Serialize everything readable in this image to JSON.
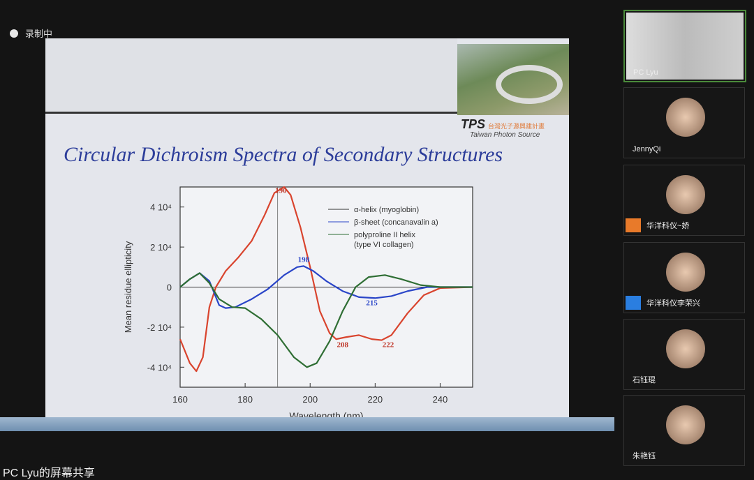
{
  "app": {
    "recording_label": "录制中",
    "share_label": "PC Lyu的屏幕共享"
  },
  "slide": {
    "title": "Circular Dichroism Spectra of Secondary Structures",
    "logo_text": "TPS",
    "logo_cn": "台灣光子源興建計畫",
    "logo_en": "Taiwan Photon Source"
  },
  "participants": [
    {
      "name": "PC Lyu",
      "video": true,
      "active": true
    },
    {
      "name": "JennyQi"
    },
    {
      "name": "华洋科仪~娇",
      "badge_color": "#e87a2a"
    },
    {
      "name": "华洋科仪李荣兴",
      "badge_color": "#2a7ee0"
    },
    {
      "name": "石钰琨"
    },
    {
      "name": "朱艳钰"
    }
  ],
  "chart_data": {
    "type": "line",
    "xlabel": "Wavelength (nm)",
    "ylabel": "Mean residue ellipticity",
    "xlim": [
      160,
      250
    ],
    "ylim": [
      -50000,
      50000
    ],
    "xticks": [
      "160",
      "180",
      "200",
      "220",
      "240"
    ],
    "xtick_values": [
      160,
      180,
      200,
      220,
      240
    ],
    "yticks": [
      "4 10⁴",
      "2 10⁴",
      "0",
      "-2 10⁴",
      "-4 10⁴"
    ],
    "ytick_values": [
      40000,
      20000,
      0,
      -20000,
      -40000
    ],
    "legend_placement": "top-right",
    "vline": 190,
    "series": [
      {
        "name": "α-helix (myoglobin)",
        "color": "#d9442e",
        "points": [
          [
            160,
            -26000
          ],
          [
            163,
            -38000
          ],
          [
            165,
            -42000
          ],
          [
            167,
            -35000
          ],
          [
            169,
            -10000
          ],
          [
            171,
            0
          ],
          [
            174,
            8000
          ],
          [
            178,
            15000
          ],
          [
            182,
            23000
          ],
          [
            186,
            36000
          ],
          [
            189,
            47000
          ],
          [
            192,
            50000
          ],
          [
            194,
            46000
          ],
          [
            197,
            30000
          ],
          [
            200,
            10000
          ],
          [
            203,
            -12000
          ],
          [
            206,
            -23000
          ],
          [
            208,
            -26000
          ],
          [
            211,
            -25000
          ],
          [
            215,
            -24000
          ],
          [
            219,
            -26000
          ],
          [
            222,
            -26500
          ],
          [
            225,
            -24000
          ],
          [
            230,
            -13000
          ],
          [
            235,
            -4000
          ],
          [
            240,
            -500
          ],
          [
            250,
            0
          ]
        ]
      },
      {
        "name": "β-sheet (concanavalin a)",
        "color": "#2a45c8",
        "points": [
          [
            160,
            0
          ],
          [
            163,
            4000
          ],
          [
            166,
            7000
          ],
          [
            169,
            3000
          ],
          [
            172,
            -9000
          ],
          [
            174,
            -10500
          ],
          [
            177,
            -10000
          ],
          [
            182,
            -6000
          ],
          [
            187,
            -1000
          ],
          [
            192,
            6000
          ],
          [
            196,
            10000
          ],
          [
            198,
            10500
          ],
          [
            201,
            8000
          ],
          [
            205,
            3000
          ],
          [
            210,
            -2000
          ],
          [
            215,
            -5000
          ],
          [
            220,
            -5500
          ],
          [
            225,
            -4500
          ],
          [
            230,
            -2000
          ],
          [
            236,
            0
          ],
          [
            250,
            0
          ]
        ]
      },
      {
        "name": "polyproline II helix (type VI collagen)",
        "color": "#2f6e34",
        "points": [
          [
            160,
            0
          ],
          [
            163,
            4000
          ],
          [
            166,
            7000
          ],
          [
            169,
            2000
          ],
          [
            172,
            -6000
          ],
          [
            176,
            -10000
          ],
          [
            180,
            -10500
          ],
          [
            185,
            -16000
          ],
          [
            190,
            -24000
          ],
          [
            195,
            -35000
          ],
          [
            199,
            -40000
          ],
          [
            202,
            -38000
          ],
          [
            206,
            -27000
          ],
          [
            210,
            -12000
          ],
          [
            214,
            0
          ],
          [
            218,
            5000
          ],
          [
            223,
            6000
          ],
          [
            228,
            4000
          ],
          [
            234,
            1000
          ],
          [
            240,
            0
          ],
          [
            250,
            0
          ]
        ]
      }
    ],
    "annotations": [
      {
        "text": "190",
        "x": 191,
        "y": 47000,
        "color": "#c0392b"
      },
      {
        "text": "198",
        "x": 198,
        "y": 12500,
        "color": "#2a45c8"
      },
      {
        "text": "215",
        "x": 219,
        "y": -9000,
        "color": "#2a45c8"
      },
      {
        "text": "208",
        "x": 210,
        "y": -30000,
        "color": "#c0392b"
      },
      {
        "text": "222",
        "x": 224,
        "y": -30000,
        "color": "#c0392b"
      }
    ]
  }
}
